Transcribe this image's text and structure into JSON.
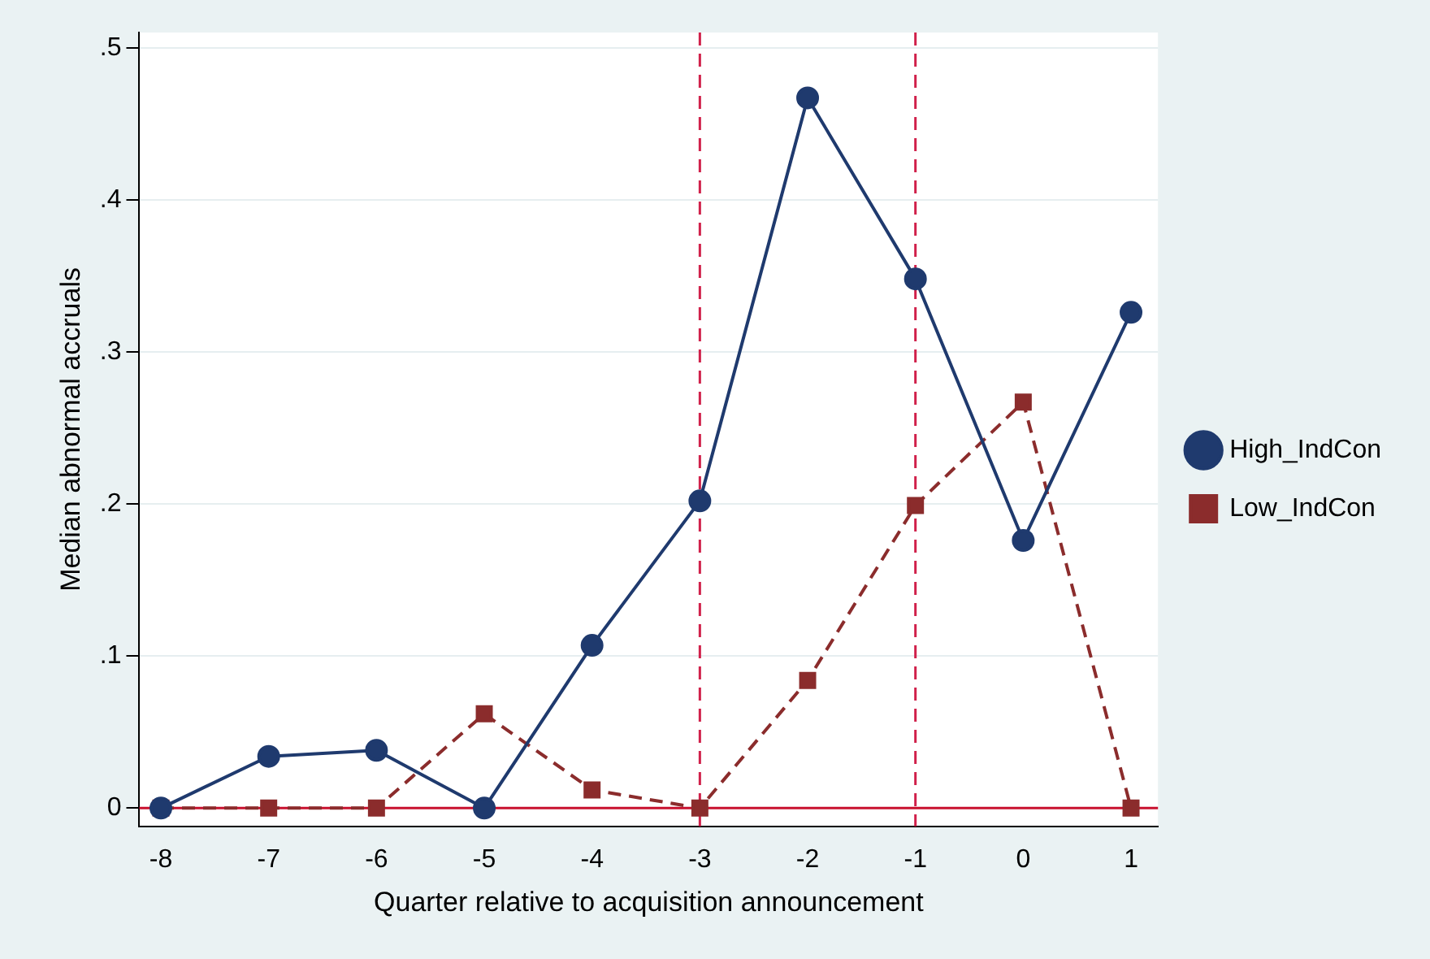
{
  "chart_data": {
    "type": "line",
    "xlabel": "Quarter relative to acquisition announcement",
    "ylabel": "Median abnormal accruals",
    "x": [
      -8,
      -7,
      -6,
      -5,
      -4,
      -3,
      -2,
      -1,
      0,
      1
    ],
    "series": [
      {
        "name": "High_IndCon",
        "color": "#1f3a6e",
        "values": [
          0,
          0.034,
          0.038,
          0,
          0.107,
          0.202,
          0.467,
          0.348,
          0.176,
          0.326
        ],
        "marker": "circle",
        "line_style": "solid"
      },
      {
        "name": "Low_IndCon",
        "color": "#8b2c2c",
        "values": [
          0,
          0,
          0,
          0.062,
          0.012,
          0,
          0.084,
          0.199,
          0.267,
          0
        ],
        "marker": "square",
        "line_style": "dashed"
      }
    ],
    "xlim": [
      -8.2,
      1.25
    ],
    "xticks": [
      -8,
      -7,
      -6,
      -5,
      -4,
      -3,
      -2,
      -1,
      0,
      1
    ],
    "ylim": [
      -0.012,
      0.51
    ],
    "yticks": [
      {
        "value": 0,
        "label": "0"
      },
      {
        "value": 0.1,
        "label": ".1"
      },
      {
        "value": 0.2,
        "label": ".2"
      },
      {
        "value": 0.3,
        "label": ".3"
      },
      {
        "value": 0.4,
        "label": ".4"
      },
      {
        "value": 0.5,
        "label": ".5"
      }
    ],
    "ref_lines": [
      {
        "axis": "y",
        "value": 0,
        "color": "#c8102e",
        "line_style": "solid"
      },
      {
        "axis": "x",
        "value": -3,
        "color": "#d0204a",
        "line_style": "dashed"
      },
      {
        "axis": "x",
        "value": -1,
        "color": "#d0204a",
        "line_style": "dashed"
      }
    ],
    "grid": "y",
    "legend": "right"
  }
}
